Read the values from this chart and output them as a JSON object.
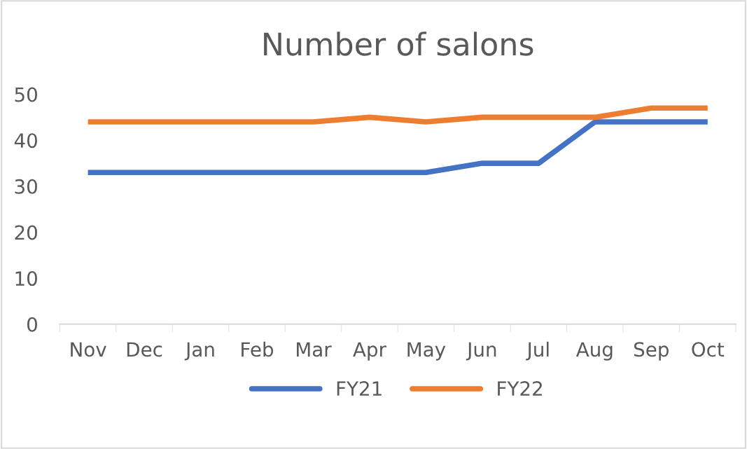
{
  "chart_data": {
    "type": "line",
    "title": "Number of salons",
    "categories": [
      "Nov",
      "Dec",
      "Jan",
      "Feb",
      "Mar",
      "Apr",
      "May",
      "Jun",
      "Jul",
      "Aug",
      "Sep",
      "Oct"
    ],
    "series": [
      {
        "name": "FY21",
        "color": "#4472c4",
        "values": [
          33,
          33,
          33,
          33,
          33,
          33,
          33,
          35,
          35,
          44,
          44,
          44
        ]
      },
      {
        "name": "FY22",
        "color": "#ed7d31",
        "values": [
          44,
          44,
          44,
          44,
          44,
          45,
          44,
          45,
          45,
          45,
          47,
          47
        ]
      }
    ],
    "ylim": [
      0,
      50
    ],
    "yticks": [
      0,
      10,
      20,
      30,
      40,
      50
    ],
    "grid": false,
    "legend": "bottom",
    "marker": "none",
    "line_style": "solid"
  }
}
